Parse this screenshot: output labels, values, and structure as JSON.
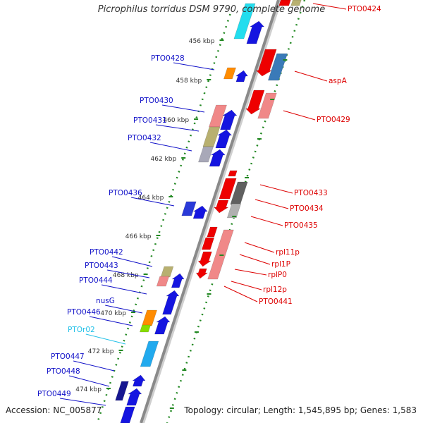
{
  "title": "Picrophilus torridus DSM 9790, complete genome",
  "footer": {
    "accession": "Accession: NC_005877",
    "summary": "Topology: circular; Length: 1,545,895 bp; Genes: 1,583"
  },
  "colors": {
    "forward_label": "#1010c8",
    "reverse_label": "#dd0000",
    "rna_label": "#20c0e8",
    "backbone": "#8a8a8a",
    "tick": "#228822"
  },
  "kbp_ticks": [
    "456 kbp",
    "458 kbp",
    "460 kbp",
    "462 kbp",
    "464 kbp",
    "466 kbp",
    "468 kbp",
    "470 kbp",
    "472 kbp",
    "474 kbp"
  ],
  "forward_genes": [
    "PTO0428",
    "PTO0430",
    "PTO0431",
    "PTO0432",
    "PTO0436",
    "PTO0442",
    "PTO0443",
    "PTO0444",
    "nusG",
    "PTO0446",
    "PTOr02",
    "PTO0447",
    "PTO0448",
    "PTO0449"
  ],
  "reverse_genes": [
    "PTO0424",
    "aspA",
    "PTO0429",
    "PTO0433",
    "PTO0434",
    "PTO0435",
    "rpl11p",
    "rpl1P",
    "rplP0",
    "rpl12p",
    "PTO0441"
  ]
}
